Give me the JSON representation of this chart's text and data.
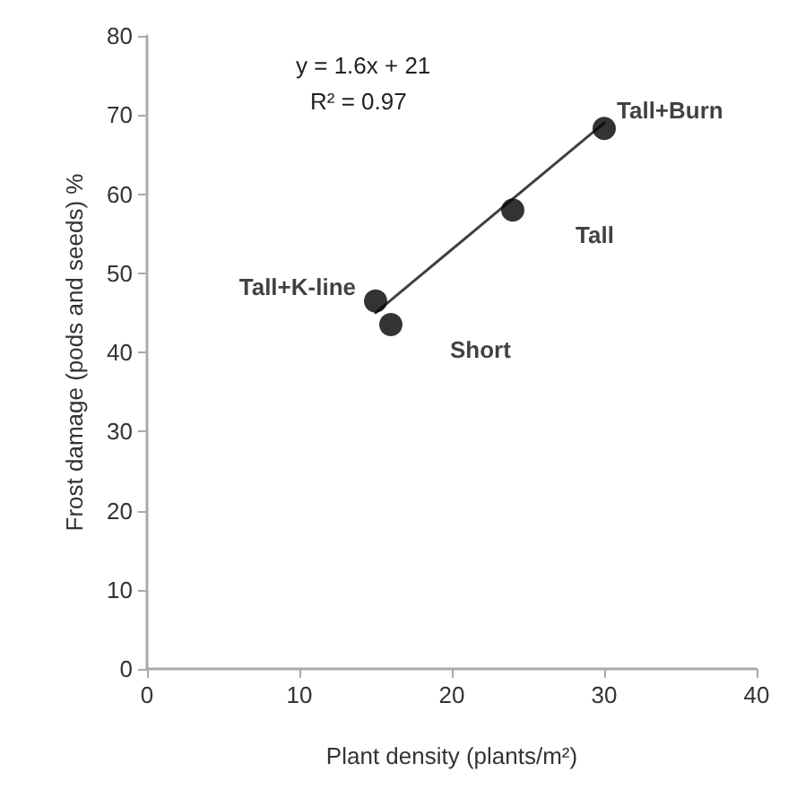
{
  "chart_data": {
    "type": "scatter",
    "xlabel": "Plant density (plants/m²)",
    "ylabel": "Frost damage (pods and seeds) %",
    "x": [
      15,
      16,
      24,
      30
    ],
    "series": [
      {
        "color": "#000000",
        "values": [
          46.5,
          43.5,
          58,
          68.3
        ],
        "marker": "circle"
      },
      {
        "type": "line",
        "color": "#404040",
        "x": [
          15,
          30
        ],
        "values": [
          45,
          69
        ],
        "marker": "none",
        "line_style": "solid"
      }
    ],
    "xlim": [
      0,
      40
    ],
    "xticks": [
      0,
      10,
      20,
      30,
      40
    ],
    "ylim": [
      0,
      80
    ],
    "yticks": [
      0,
      10,
      20,
      30,
      40,
      50,
      60,
      70,
      80
    ],
    "grid": false,
    "annotations": [
      "y = 1.6x + 21",
      "R² = 0.97",
      {
        "text": "Tall+K-line",
        "x": 15,
        "y": 46.5
      },
      {
        "text": "Short",
        "x": 16,
        "y": 43.5
      },
      {
        "text": "Tall",
        "x": 24,
        "y": 58
      },
      {
        "text": "Tall+Burn",
        "x": 30,
        "y": 68.3
      }
    ]
  }
}
